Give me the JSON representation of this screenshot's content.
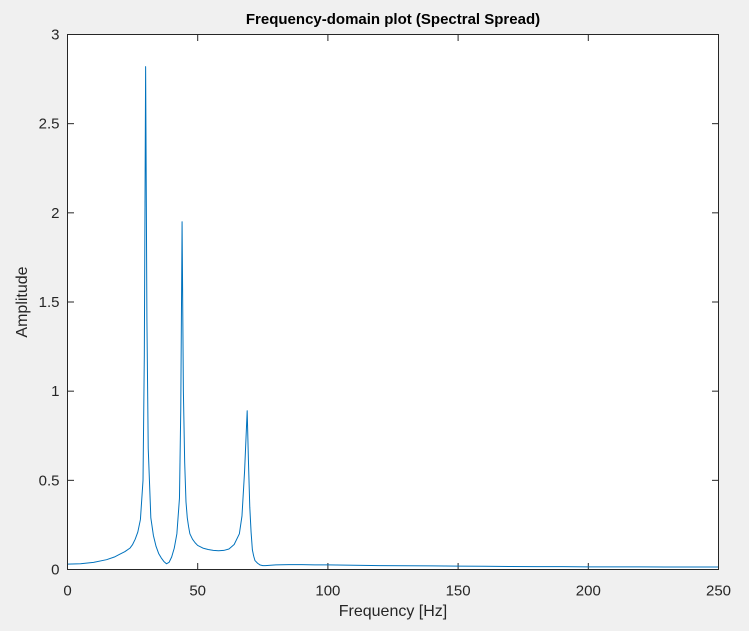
{
  "chart_data": {
    "type": "line",
    "title": "Frequency-domain plot (Spectral Spread)",
    "xlabel": "Frequency [Hz]",
    "ylabel": "Amplitude",
    "xlim": [
      0,
      250
    ],
    "ylim": [
      0,
      3
    ],
    "xticks": [
      0,
      50,
      100,
      150,
      200,
      250
    ],
    "yticks": [
      0,
      0.5,
      1,
      1.5,
      2,
      2.5,
      3
    ],
    "xtick_labels": [
      "0",
      "50",
      "100",
      "150",
      "200",
      "250"
    ],
    "ytick_labels": [
      "0",
      "0.5",
      "1",
      "1.5",
      "2",
      "2.5",
      "3"
    ],
    "grid": false,
    "line_color": "#0072bd",
    "series": [
      {
        "x": [
          0,
          5,
          10,
          15,
          18,
          20,
          22,
          24,
          25,
          26,
          27,
          28,
          29,
          29.5,
          30,
          30.5,
          31,
          32,
          33,
          34,
          35,
          36,
          37,
          38,
          39,
          40,
          41,
          42,
          43,
          43.5,
          44,
          44.5,
          45,
          45.5,
          46,
          46.5,
          47,
          48,
          49,
          50,
          52,
          54,
          56,
          58,
          60,
          62,
          64,
          66,
          67,
          68,
          69,
          69.5,
          70,
          70.5,
          71,
          71.5,
          72,
          73,
          74,
          75,
          76,
          78,
          80,
          85,
          90,
          95,
          100,
          110,
          120,
          130,
          140,
          150,
          160,
          170,
          180,
          190,
          200,
          210,
          220,
          230,
          240,
          250
        ],
        "y": [
          0.03,
          0.032,
          0.04,
          0.055,
          0.07,
          0.085,
          0.1,
          0.12,
          0.14,
          0.17,
          0.21,
          0.28,
          0.5,
          1.2,
          2.82,
          1.4,
          0.68,
          0.29,
          0.19,
          0.13,
          0.09,
          0.065,
          0.045,
          0.032,
          0.04,
          0.07,
          0.12,
          0.2,
          0.4,
          0.9,
          1.95,
          1.0,
          0.6,
          0.38,
          0.29,
          0.24,
          0.2,
          0.17,
          0.15,
          0.135,
          0.12,
          0.112,
          0.107,
          0.105,
          0.107,
          0.115,
          0.14,
          0.2,
          0.3,
          0.55,
          0.89,
          0.6,
          0.35,
          0.21,
          0.11,
          0.075,
          0.05,
          0.035,
          0.025,
          0.022,
          0.022,
          0.024,
          0.026,
          0.027,
          0.027,
          0.026,
          0.026,
          0.024,
          0.022,
          0.021,
          0.02,
          0.019,
          0.018,
          0.017,
          0.016,
          0.016,
          0.015,
          0.015,
          0.015,
          0.014,
          0.014,
          0.014
        ]
      }
    ]
  }
}
